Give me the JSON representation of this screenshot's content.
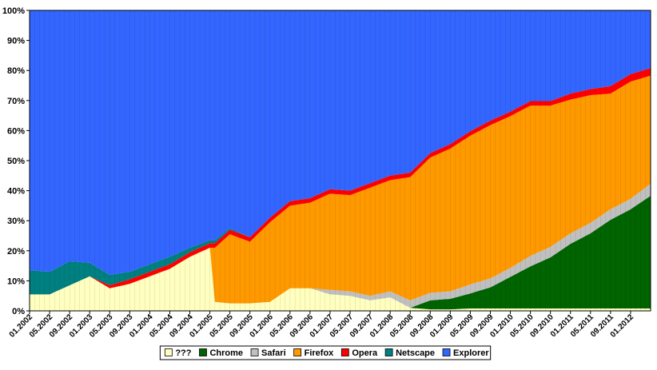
{
  "chart_data": {
    "type": "area",
    "stacked": true,
    "normalized": true,
    "title": "",
    "xlabel": "",
    "ylabel": "",
    "ylim": [
      0,
      100
    ],
    "y_ticks": [
      "0%",
      "10%",
      "20%",
      "30%",
      "40%",
      "50%",
      "60%",
      "70%",
      "80%",
      "90%",
      "100%"
    ],
    "grid": false,
    "legend_position": "bottom",
    "x_ticks": [
      "01.2002",
      "05.2002",
      "09.2002",
      "01.2003",
      "05.2003",
      "09.2003",
      "01.2004",
      "05.2004",
      "09.2004",
      "01.2005",
      "05.2005",
      "09.2005",
      "01.2006",
      "05.2006",
      "09.2006",
      "01.2007",
      "05.2007",
      "09.2007",
      "01.2008",
      "05.2008",
      "09.2008",
      "01.2009",
      "05.2009",
      "09.2009",
      "01.2010",
      "05.2010",
      "09.2010",
      "01.2011",
      "05.2011",
      "09.2011",
      "01.2012"
    ],
    "anchor_months": [
      "01.2002",
      "05.2002",
      "09.2002",
      "01.2003",
      "05.2003",
      "09.2003",
      "01.2004",
      "05.2004",
      "09.2004",
      "01.2005",
      "02.2005",
      "05.2005",
      "09.2005",
      "01.2006",
      "05.2006",
      "09.2006",
      "01.2007",
      "05.2007",
      "09.2007",
      "01.2008",
      "05.2008",
      "09.2008",
      "01.2009",
      "05.2009",
      "09.2009",
      "01.2010",
      "05.2010",
      "09.2010",
      "01.2011",
      "05.2011",
      "09.2011",
      "01.2012",
      "05.2012"
    ],
    "series": [
      {
        "name": "???",
        "color": "#ffffc0",
        "values": [
          5.5,
          5.5,
          8.5,
          11.5,
          7.5,
          9,
          11.5,
          14,
          18,
          21,
          3,
          2.5,
          2.5,
          3,
          7.5,
          7.5,
          5.5,
          5,
          3.5,
          4.5,
          1,
          0.5,
          0.5,
          0.8,
          0.8,
          0.8,
          0.8,
          0.8,
          0.8,
          0.8,
          0.8,
          0.8,
          0.8
        ]
      },
      {
        "name": "Chrome",
        "color": "#006400",
        "values": [
          0,
          0,
          0,
          0,
          0,
          0,
          0,
          0,
          0,
          0,
          0,
          0,
          0,
          0,
          0,
          0,
          0,
          0,
          0,
          0,
          0,
          3,
          3.5,
          5,
          7,
          10.5,
          14,
          17,
          21.5,
          25,
          29.5,
          33,
          37.5
        ]
      },
      {
        "name": "Safari",
        "color": "#c0c0c0",
        "values": [
          0,
          0,
          0,
          0,
          0,
          0,
          0,
          0,
          0,
          0,
          0,
          0,
          0,
          0,
          0,
          0,
          1.5,
          1.5,
          1.5,
          2,
          2.5,
          2.5,
          2.5,
          3,
          3,
          3,
          3.5,
          3.5,
          3.5,
          3.5,
          3.5,
          3.5,
          4
        ]
      },
      {
        "name": "Firefox",
        "color": "#ff9900",
        "values": [
          0,
          0,
          0,
          0,
          0,
          0,
          0,
          0,
          0,
          0,
          18,
          23,
          20.5,
          26.5,
          27.5,
          28.5,
          32,
          32,
          36,
          37,
          41,
          45,
          47.5,
          49.5,
          51,
          50.5,
          50,
          47,
          44.5,
          42.5,
          38.5,
          39,
          36
        ]
      },
      {
        "name": "Opera",
        "color": "#ff0000",
        "values": [
          0,
          0,
          0,
          0,
          1,
          1.5,
          1.5,
          1.5,
          1.5,
          1.5,
          1.5,
          1.5,
          1.5,
          1.5,
          1.5,
          1.5,
          1.5,
          1.5,
          1.5,
          1.5,
          1.5,
          1.5,
          1.5,
          1.5,
          1.5,
          1.5,
          1.5,
          1.5,
          2,
          2,
          2.5,
          2.5,
          2.5
        ]
      },
      {
        "name": "Netscape",
        "color": "#008080",
        "values": [
          8,
          7.5,
          8,
          4.5,
          3.5,
          2.5,
          2.5,
          2.5,
          1.5,
          1,
          1,
          0.5,
          0,
          0,
          0,
          0,
          0,
          0,
          0,
          0,
          0,
          0,
          0,
          0,
          0,
          0,
          0,
          0,
          0,
          0,
          0,
          0,
          0
        ]
      },
      {
        "name": "Explorer",
        "color": "#3366ff",
        "values": [
          86.5,
          87,
          83.5,
          84,
          88,
          87,
          84.5,
          82,
          79,
          76.5,
          76.5,
          72.5,
          75.5,
          69,
          63.5,
          62.5,
          59.5,
          60,
          57.5,
          55,
          54,
          47.5,
          44.5,
          40.2,
          36.7,
          33.7,
          30.2,
          30.2,
          27.7,
          26.2,
          25.2,
          21.2,
          19.2
        ]
      }
    ]
  }
}
